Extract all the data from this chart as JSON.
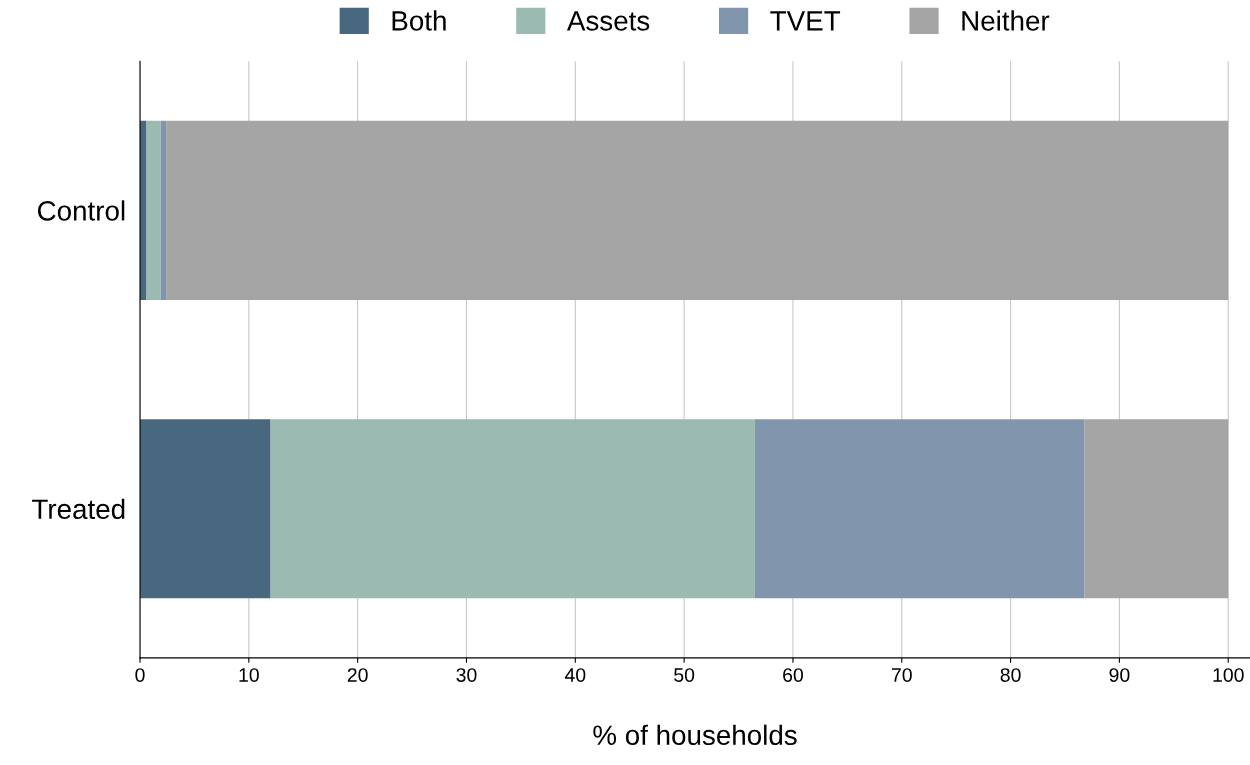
{
  "chart_data": {
    "type": "bar",
    "orientation": "horizontal",
    "stacked": true,
    "xlabel": "% of households",
    "categories": [
      "Control",
      "Treated"
    ],
    "series": [
      {
        "name": "Both",
        "color": "#48687f",
        "values": [
          0.6,
          12.0
        ]
      },
      {
        "name": "Assets",
        "color": "#9bbab2",
        "values": [
          1.3,
          44.5
        ]
      },
      {
        "name": "TVET",
        "color": "#8196ac",
        "values": [
          0.5,
          30.3
        ]
      },
      {
        "name": "Neither",
        "color": "#a5a5a5",
        "values": [
          97.6,
          13.2
        ]
      }
    ],
    "xlim": [
      0,
      102
    ],
    "xticks": [
      0,
      10,
      20,
      30,
      40,
      50,
      60,
      70,
      80,
      90,
      100
    ],
    "grid": "x",
    "legend": "top"
  }
}
